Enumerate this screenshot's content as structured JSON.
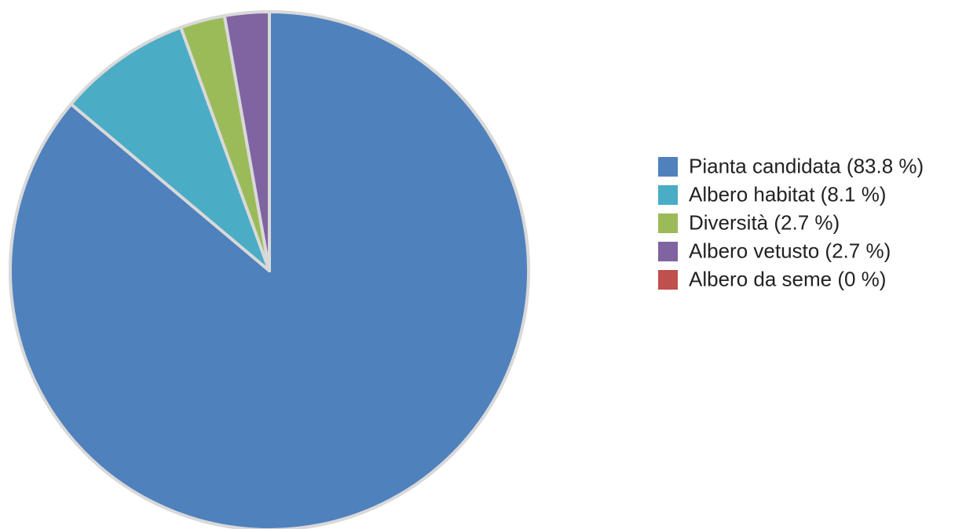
{
  "chart_data": {
    "type": "pie",
    "title": "",
    "legend_position": "right",
    "slices": [
      {
        "label": "Pianta candidata",
        "legend_text": "Pianta candidata (83.8 %)",
        "value": 83.8,
        "color": "#4f81bd"
      },
      {
        "label": "Albero habitat",
        "legend_text": "Albero habitat (8.1 %)",
        "value": 8.1,
        "color": "#4bacc6"
      },
      {
        "label": "Diversità",
        "legend_text": "Diversità (2.7 %)",
        "value": 2.7,
        "color": "#9bbb59"
      },
      {
        "label": "Albero vetusto",
        "legend_text": "Albero vetusto (2.7 %)",
        "value": 2.7,
        "color": "#8064a2"
      },
      {
        "label": "Albero da seme",
        "legend_text": "Albero da seme (0 %)",
        "value": 0,
        "color": "#c0504d"
      }
    ],
    "slice_border_color": "#d9d9d9"
  }
}
